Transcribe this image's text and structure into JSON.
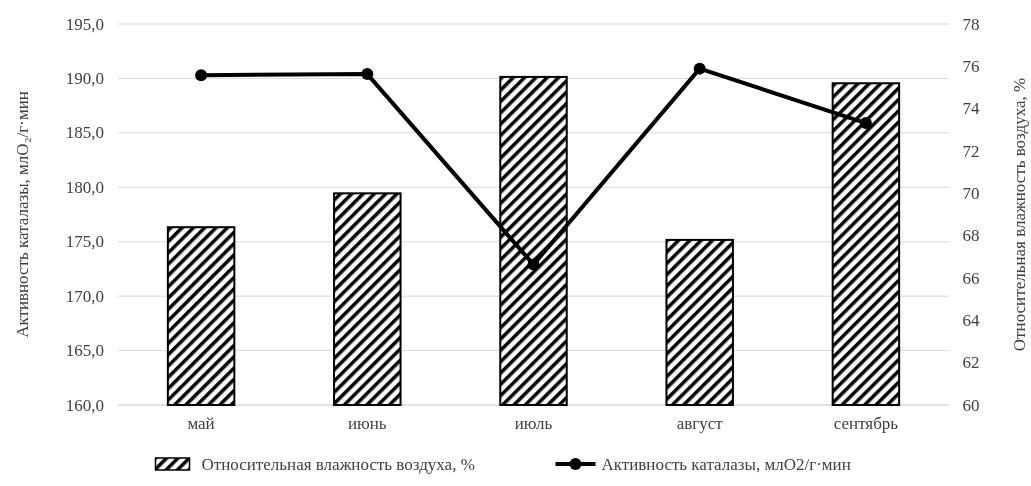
{
  "chart_data": {
    "type": "bar",
    "categories": [
      "май",
      "июнь",
      "июль",
      "август",
      "сентябрь"
    ],
    "ylabel": "Активность каталазы, млO₂/г·мин",
    "y2label": "Относительная влажность воздуха, %",
    "ylim": [
      160,
      195
    ],
    "yticks": [
      {
        "value": 160,
        "label": "160,0"
      },
      {
        "value": 165,
        "label": "165,0"
      },
      {
        "value": 170,
        "label": "170,0"
      },
      {
        "value": 175,
        "label": "175,0"
      },
      {
        "value": 180,
        "label": "180,0"
      },
      {
        "value": 185,
        "label": "185,0"
      },
      {
        "value": 190,
        "label": "190,0"
      },
      {
        "value": 195,
        "label": "195,0"
      }
    ],
    "y2lim": [
      60,
      78
    ],
    "y2ticks": [
      60,
      62,
      64,
      66,
      68,
      70,
      72,
      74,
      76,
      78
    ],
    "series": [
      {
        "name": "Относительная влажность воздуха, %",
        "axis": "y2",
        "color": "#000000",
        "values": [
          68.4,
          70.0,
          75.5,
          67.8,
          75.2
        ]
      },
      {
        "name": "Активность каталазы, млО2/г·мин",
        "type": "line",
        "axis": "y",
        "color": "#000000",
        "marker": "circle",
        "values": [
          190.3,
          190.4,
          172.9,
          190.9,
          185.9
        ]
      }
    ],
    "grid": "y",
    "legend": "bottom"
  }
}
